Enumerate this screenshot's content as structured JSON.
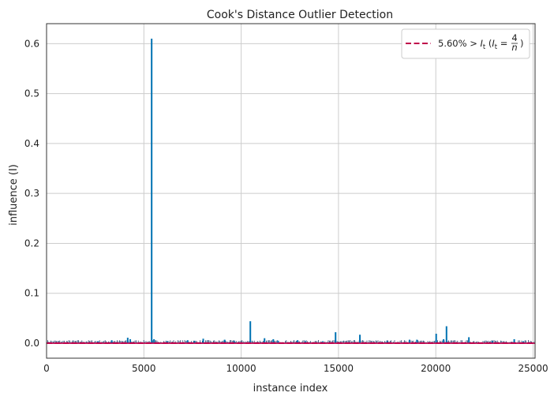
{
  "chart_data": {
    "type": "stem",
    "title": "Cook's Distance Outlier Detection",
    "xlabel": "instance index",
    "ylabel": "influence (I)",
    "xlim": [
      0,
      25100
    ],
    "ylim": [
      -0.03,
      0.64
    ],
    "xticks": [
      0,
      5000,
      10000,
      15000,
      20000,
      25000
    ],
    "yticks": [
      0.0,
      0.1,
      0.2,
      0.3,
      0.4,
      0.5,
      0.6
    ],
    "grid": true,
    "legend_position": "top-right",
    "colors": {
      "stem": "#0072b2",
      "threshold": "#c0004a",
      "grid": "#cccccc",
      "axis": "#333333"
    },
    "threshold": {
      "value": 0.00016,
      "label": "5.60% > I_t (I_t = 4/n)"
    },
    "legend": [
      {
        "label_main": "5.60% > ",
        "label_symbol": "I",
        "label_sub": "t",
        "label_open": " (",
        "label_eq": " = ",
        "label_num": "4",
        "label_den": "n",
        "label_close": ")"
      }
    ],
    "spikes": [
      {
        "x": 5400,
        "y": 0.61
      },
      {
        "x": 10470,
        "y": 0.044
      },
      {
        "x": 20550,
        "y": 0.034
      },
      {
        "x": 14850,
        "y": 0.022
      },
      {
        "x": 20020,
        "y": 0.019
      },
      {
        "x": 16100,
        "y": 0.017
      },
      {
        "x": 21700,
        "y": 0.012
      },
      {
        "x": 4170,
        "y": 0.011
      },
      {
        "x": 11200,
        "y": 0.01
      },
      {
        "x": 8050,
        "y": 0.009
      },
      {
        "x": 4300,
        "y": 0.008
      },
      {
        "x": 5520,
        "y": 0.008
      },
      {
        "x": 11650,
        "y": 0.008
      },
      {
        "x": 20400,
        "y": 0.008
      },
      {
        "x": 24030,
        "y": 0.008
      },
      {
        "x": 9150,
        "y": 0.007
      },
      {
        "x": 18650,
        "y": 0.007
      },
      {
        "x": 19030,
        "y": 0.007
      },
      {
        "x": 3350,
        "y": 0.006
      },
      {
        "x": 7250,
        "y": 0.006
      },
      {
        "x": 12900,
        "y": 0.006
      },
      {
        "x": 2650,
        "y": 0.004
      },
      {
        "x": 6200,
        "y": 0.004
      },
      {
        "x": 7600,
        "y": 0.004
      },
      {
        "x": 9650,
        "y": 0.004
      },
      {
        "x": 11900,
        "y": 0.005
      },
      {
        "x": 13300,
        "y": 0.004
      },
      {
        "x": 14200,
        "y": 0.004
      },
      {
        "x": 17500,
        "y": 0.004
      },
      {
        "x": 22900,
        "y": 0.004
      },
      {
        "x": 24500,
        "y": 0.004
      }
    ]
  }
}
